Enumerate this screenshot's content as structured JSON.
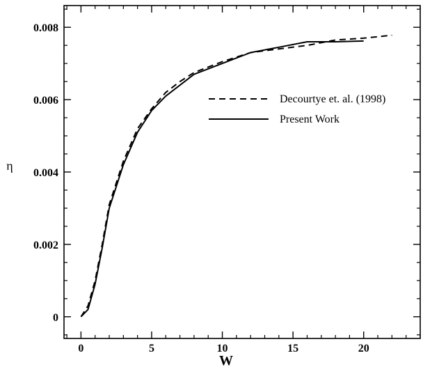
{
  "chart_data": {
    "type": "line",
    "title": "",
    "xlabel": "W",
    "ylabel": "η",
    "xlim": [
      -1.2,
      24
    ],
    "ylim": [
      -0.0006,
      0.0086
    ],
    "xticks": [
      0,
      5,
      10,
      15,
      20
    ],
    "xtick_labels": [
      "0",
      "5",
      "10",
      "15",
      "20"
    ],
    "yticks": [
      0,
      0.002,
      0.004,
      0.006,
      0.008
    ],
    "ytick_labels": [
      "0",
      "0.002",
      "0.004",
      "0.006",
      "0.008"
    ],
    "grid": false,
    "legend_position": "center-right",
    "series": [
      {
        "name": "Decourtye et. al. (1998)",
        "style": "dashed",
        "color": "#000000",
        "x": [
          0,
          0.5,
          1,
          1.5,
          2,
          3,
          4,
          5,
          6,
          7,
          8,
          9,
          10,
          12,
          14,
          16,
          18,
          20,
          22
        ],
        "y": [
          0,
          0.0003,
          0.001,
          0.002,
          0.0031,
          0.0043,
          0.0052,
          0.00575,
          0.0062,
          0.0065,
          0.00675,
          0.0069,
          0.00705,
          0.0073,
          0.0074,
          0.0075,
          0.00765,
          0.0077,
          0.00778
        ]
      },
      {
        "name": "Present Work",
        "style": "solid",
        "color": "#000000",
        "x": [
          0,
          0.5,
          1,
          1.5,
          2,
          3,
          4,
          5,
          6,
          7,
          8,
          10,
          12,
          14,
          16,
          18,
          20
        ],
        "y": [
          0,
          0.0002,
          0.0009,
          0.0019,
          0.003,
          0.0042,
          0.0051,
          0.0057,
          0.0061,
          0.0064,
          0.0067,
          0.007,
          0.0073,
          0.00745,
          0.0076,
          0.0076,
          0.00762
        ]
      }
    ]
  }
}
